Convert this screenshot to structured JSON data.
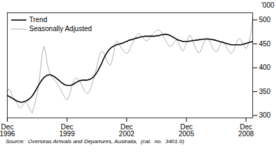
{
  "chart_data": {
    "type": "line",
    "ylabel": "'000",
    "caption": "Source:  Overseas Arrivals and Departures, Australia,  (cat.  no.  3401.0)",
    "categories": [
      "Dec\n1996",
      null,
      null,
      null,
      null,
      null,
      null,
      null,
      null,
      null,
      null,
      null,
      null,
      null,
      null,
      null,
      null,
      null,
      null,
      null,
      null,
      null,
      null,
      null,
      null,
      null,
      null,
      null,
      null,
      null,
      null,
      null,
      null,
      null,
      null,
      null,
      "Dec\n1999",
      null,
      null,
      null,
      null,
      null,
      null,
      null,
      null,
      null,
      null,
      null,
      null,
      null,
      null,
      null,
      null,
      null,
      null,
      null,
      null,
      null,
      null,
      null,
      null,
      null,
      null,
      null,
      null,
      null,
      null,
      null,
      null,
      null,
      null,
      null,
      "Dec\n2002",
      null,
      null,
      null,
      null,
      null,
      null,
      null,
      null,
      null,
      null,
      null,
      null,
      null,
      null,
      null,
      null,
      null,
      null,
      null,
      null,
      null,
      null,
      null,
      null,
      null,
      null,
      null,
      null,
      null,
      null,
      null,
      null,
      null,
      null,
      null,
      "Dec\n2005",
      null,
      null,
      null,
      null,
      null,
      null,
      null,
      null,
      null,
      null,
      null,
      null,
      null,
      null,
      null,
      null,
      null,
      null,
      null,
      null,
      null,
      null,
      null,
      null,
      null,
      null,
      null,
      null,
      null,
      null,
      null,
      null,
      null,
      null,
      null,
      "Dec\n2008",
      null,
      null,
      null,
      null
    ],
    "series": [
      {
        "name": "Trend",
        "color": "#000000",
        "values": [
          342,
          340,
          338,
          336,
          334,
          332,
          330,
          329,
          328,
          328,
          329,
          330,
          332,
          334,
          337,
          341,
          346,
          352,
          358,
          364,
          370,
          375,
          379,
          382,
          384,
          385,
          385,
          384,
          382,
          380,
          377,
          374,
          371,
          368,
          366,
          364,
          363,
          363,
          363,
          364,
          366,
          368,
          370,
          372,
          373,
          374,
          374,
          374,
          374,
          375,
          376,
          378,
          381,
          385,
          390,
          396,
          403,
          410,
          418,
          425,
          431,
          436,
          440,
          443,
          445,
          447,
          448,
          449,
          450,
          451,
          452,
          454,
          455,
          457,
          458,
          459,
          460,
          461,
          462,
          463,
          464,
          465,
          465,
          466,
          466,
          466,
          466,
          466,
          466,
          466,
          467,
          467,
          468,
          469,
          469,
          470,
          470,
          469,
          468,
          466,
          464,
          462,
          460,
          458,
          457,
          456,
          455,
          455,
          455,
          455,
          456,
          456,
          457,
          457,
          458,
          458,
          459,
          459,
          460,
          460,
          460,
          460,
          460,
          459,
          459,
          458,
          457,
          456,
          455,
          454,
          453,
          452,
          451,
          450,
          449,
          448,
          448,
          448,
          448,
          448,
          448,
          448,
          449,
          450,
          451,
          452,
          453,
          454,
          455
        ]
      },
      {
        "name": "Seasonally Adjusted",
        "color": "#b0b0b0",
        "values": [
          348,
          356,
          352,
          340,
          336,
          330,
          325,
          318,
          315,
          320,
          325,
          328,
          325,
          318,
          310,
          305,
          318,
          330,
          345,
          368,
          395,
          430,
          445,
          435,
          410,
          395,
          385,
          380,
          376,
          372,
          368,
          362,
          356,
          348,
          342,
          336,
          332,
          338,
          350,
          362,
          372,
          378,
          378,
          375,
          370,
          363,
          355,
          350,
          346,
          348,
          355,
          364,
          375,
          388,
          402,
          418,
          430,
          435,
          432,
          425,
          415,
          408,
          405,
          412,
          428,
          448,
          456,
          452,
          446,
          440,
          435,
          432,
          430,
          432,
          440,
          448,
          455,
          462,
          468,
          472,
          470,
          466,
          462,
          458,
          456,
          458,
          463,
          468,
          472,
          475,
          478,
          480,
          478,
          474,
          468,
          460,
          453,
          448,
          445,
          445,
          450,
          455,
          458,
          454,
          446,
          438,
          435,
          442,
          452,
          462,
          468,
          464,
          456,
          446,
          438,
          432,
          432,
          438,
          448,
          456,
          462,
          462,
          456,
          448,
          440,
          435,
          433,
          437,
          445,
          452,
          456,
          452,
          444,
          438,
          432,
          430,
          433,
          440,
          450,
          458,
          462,
          458,
          452,
          445,
          440,
          446,
          458,
          472,
          510
        ]
      }
    ],
    "ylim": [
      295,
      515
    ],
    "yticks": [
      300,
      350,
      400,
      450,
      500
    ],
    "grid": false,
    "legend": "upper left"
  }
}
